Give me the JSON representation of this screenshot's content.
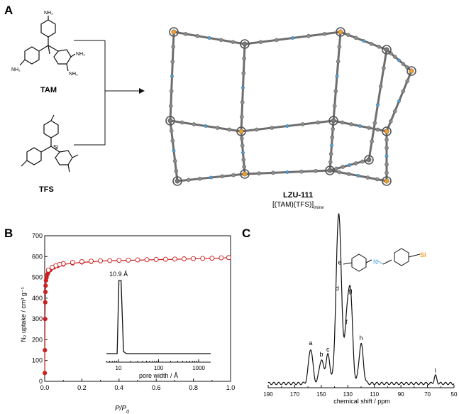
{
  "panels": {
    "a": {
      "letter": "A",
      "monomer1": {
        "name": "TAM",
        "group_label": "NH₂"
      },
      "monomer2": {
        "name": "TFS",
        "atom_label": "Si"
      },
      "framework": {
        "name": "LZU-111",
        "formula_main": "[(TAM)(TFS)]",
        "formula_sub": "imine"
      }
    },
    "b": {
      "letter": "B",
      "xlabel_main": "P/P",
      "xlabel_sub": "0",
      "ylabel": "N₂ uptake / cm³ g⁻¹",
      "inset": {
        "peak_label": "10.9 Å",
        "xlabel": "pore width / Å"
      }
    },
    "c": {
      "letter": "C",
      "xlabel": "chemical shift / ppm",
      "molecule_atoms": {
        "si": "Si",
        "n": "N"
      }
    }
  },
  "colors": {
    "adsorption": "#cc1f1f",
    "nitrogen": "#4aa3df",
    "silicon": "#f0a030",
    "atom_gray": "#8c8c8c"
  },
  "chart_data": [
    {
      "id": "isotherm",
      "type": "scatter",
      "xlabel": "P/P0",
      "ylabel": "N2 uptake / cm3 g-1",
      "xlim": [
        0.0,
        1.0
      ],
      "ylim": [
        0,
        700
      ],
      "xticks": [
        "0.0",
        "0.2",
        "0.4",
        "0.6",
        "0.8",
        "1.0"
      ],
      "yticks": [
        "0",
        "100",
        "200",
        "300",
        "400",
        "500",
        "600",
        "700"
      ],
      "series": [
        {
          "role": "adsorption",
          "x": [
            0.0005,
            0.001,
            0.002,
            0.003,
            0.004,
            0.005,
            0.007,
            0.01,
            0.015,
            0.02,
            0.03,
            0.05,
            0.07,
            0.1,
            0.15,
            0.2,
            0.25,
            0.3,
            0.35,
            0.4,
            0.45,
            0.5,
            0.55,
            0.6,
            0.65,
            0.7,
            0.75,
            0.8,
            0.85,
            0.9,
            0.95,
            0.99
          ],
          "y": [
            40,
            150,
            300,
            380,
            430,
            460,
            485,
            500,
            515,
            525,
            535,
            548,
            555,
            562,
            568,
            572,
            575,
            578,
            580,
            581,
            582,
            583,
            584,
            585,
            586,
            587,
            588,
            589,
            590,
            591,
            593,
            595
          ]
        },
        {
          "role": "desorption",
          "x": [
            0.99,
            0.95,
            0.9,
            0.85,
            0.8,
            0.75,
            0.7,
            0.65,
            0.6,
            0.55,
            0.5,
            0.45,
            0.4,
            0.35,
            0.3,
            0.25,
            0.2,
            0.15,
            0.1,
            0.08,
            0.06,
            0.04,
            0.02
          ],
          "y": [
            595,
            594,
            592,
            591,
            590,
            589,
            588,
            587,
            586,
            585,
            584,
            583,
            582,
            581,
            580,
            578,
            576,
            572,
            566,
            562,
            556,
            548,
            535
          ]
        }
      ],
      "inset": {
        "type": "line",
        "xlabel": "pore width / Å",
        "xscale": "log",
        "xlim": [
          5,
          2000
        ],
        "xticks": [
          "10",
          "100",
          "1000"
        ],
        "peak_x": 10.9,
        "peak_label": "10.9 Å"
      }
    },
    {
      "id": "nmr",
      "type": "line",
      "xlabel": "chemical shift / ppm",
      "xlim": [
        190,
        50
      ],
      "xticks": [
        "190",
        "170",
        "150",
        "130",
        "110",
        "90",
        "70",
        "50"
      ],
      "peaks": [
        {
          "label": "a",
          "x": 158,
          "height": 0.28
        },
        {
          "label": "b",
          "x": 150,
          "height": 0.19
        },
        {
          "label": "c",
          "x": 145,
          "height": 0.23
        },
        {
          "label": "d",
          "x": 138,
          "height": 0.72
        },
        {
          "label": "e",
          "x": 136,
          "height": 0.93
        },
        {
          "label": "f",
          "x": 131,
          "height": 0.45
        },
        {
          "label": "g",
          "x": 128,
          "height": 0.7
        },
        {
          "label": "h",
          "x": 120,
          "height": 0.32
        },
        {
          "label": "i",
          "x": 64,
          "height": 0.06
        }
      ]
    }
  ]
}
